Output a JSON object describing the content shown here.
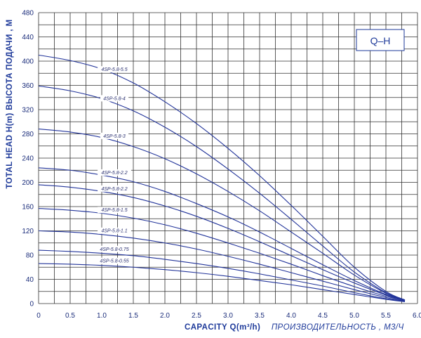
{
  "chart_data": {
    "type": "line",
    "title": "Q–H",
    "xlabel": "CAPACITY Q(m³/h)",
    "xlabel_ru": "ПРОИЗВОДИТЕЛЬНОСТЬ , М3/Ч",
    "ylabel": "TOTAL HEAD H(m) ВЫСОТА ПОДАЧИ , М",
    "xlim": [
      0,
      6.0
    ],
    "ylim": [
      0,
      480
    ],
    "x_ticks": [
      "0",
      "0.5",
      "1.0",
      "1.5",
      "2.0",
      "2.5",
      "3.0",
      "3.5",
      "4.0",
      "4.5",
      "5.0",
      "5.5",
      "6.0"
    ],
    "y_ticks": [
      "0",
      "40",
      "80",
      "120",
      "160",
      "200",
      "240",
      "280",
      "320",
      "360",
      "400",
      "440",
      "480"
    ],
    "grid": true,
    "series": [
      {
        "name": "4SP-5.8-5.5",
        "x": [
          0,
          0.5,
          1.0,
          1.5,
          2.0,
          2.5,
          3.0,
          3.5,
          4.0,
          4.5,
          5.0,
          5.5,
          5.8
        ],
        "y": [
          410,
          401,
          387,
          364,
          333,
          297,
          256,
          211,
          162,
          111,
          60,
          20,
          6
        ]
      },
      {
        "name": "4SP-5.8-4",
        "x": [
          0,
          0.5,
          1.0,
          1.5,
          2.0,
          2.5,
          3.0,
          3.5,
          4.0,
          4.5,
          5.0,
          5.5,
          5.8
        ],
        "y": [
          359,
          351,
          338,
          318,
          291,
          259,
          222,
          182,
          139,
          95,
          52,
          18,
          6
        ]
      },
      {
        "name": "4SP-5.8-3",
        "x": [
          0,
          0.5,
          1.0,
          1.5,
          2.0,
          2.5,
          3.0,
          3.5,
          4.0,
          4.5,
          5.0,
          5.5,
          5.8
        ],
        "y": [
          288,
          283,
          274,
          259,
          239,
          214,
          185,
          153,
          118,
          83,
          47,
          17,
          5
        ]
      },
      {
        "name": "4SP-5.8-2.2",
        "x": [
          0,
          0.5,
          1.0,
          1.5,
          2.0,
          2.5,
          3.0,
          3.5,
          4.0,
          4.5,
          5.0,
          5.5,
          5.8
        ],
        "y": [
          224,
          220,
          212,
          201,
          185,
          165,
          143,
          118,
          91,
          64,
          38,
          15,
          5
        ]
      },
      {
        "name": "4SP-5.8-2.2",
        "x": [
          0,
          0.5,
          1.0,
          1.5,
          2.0,
          2.5,
          3.0,
          3.5,
          4.0,
          4.5,
          5.0,
          5.5,
          5.8
        ],
        "y": [
          196,
          192,
          185,
          175,
          161,
          144,
          124,
          102,
          79,
          56,
          34,
          14,
          5
        ]
      },
      {
        "name": "4SP-5.8-1.5",
        "x": [
          0,
          0.5,
          1.0,
          1.5,
          2.0,
          2.5,
          3.0,
          3.5,
          4.0,
          4.5,
          5.0,
          5.5,
          5.8
        ],
        "y": [
          157,
          154,
          149,
          141,
          130,
          116,
          100,
          83,
          65,
          46,
          28,
          12,
          5
        ]
      },
      {
        "name": "4SP-5.8-1.1",
        "x": [
          0,
          0.5,
          1.0,
          1.5,
          2.0,
          2.5,
          3.0,
          3.5,
          4.0,
          4.5,
          5.0,
          5.5,
          5.8
        ],
        "y": [
          120,
          118,
          114,
          108,
          100,
          90,
          78,
          65,
          51,
          37,
          23,
          10,
          4
        ]
      },
      {
        "name": "4SP-5.8-0.75",
        "x": [
          0,
          0.5,
          1.0,
          1.5,
          2.0,
          2.5,
          3.0,
          3.5,
          4.0,
          4.5,
          5.0,
          5.5,
          5.8
        ],
        "y": [
          88,
          86,
          83,
          79,
          73,
          66,
          58,
          49,
          39,
          29,
          18,
          8,
          4
        ]
      },
      {
        "name": "4SP-5.8-0.55",
        "x": [
          0,
          0.5,
          1.0,
          1.5,
          2.0,
          2.5,
          3.0,
          3.5,
          4.0,
          4.5,
          5.0,
          5.5,
          5.8
        ],
        "y": [
          66,
          65,
          63,
          60,
          56,
          51,
          45,
          38,
          31,
          23,
          15,
          7,
          3
        ]
      }
    ]
  },
  "colors": {
    "curve": "#22349a",
    "grid": "#303030",
    "axis_text": "#1e3a9a"
  }
}
